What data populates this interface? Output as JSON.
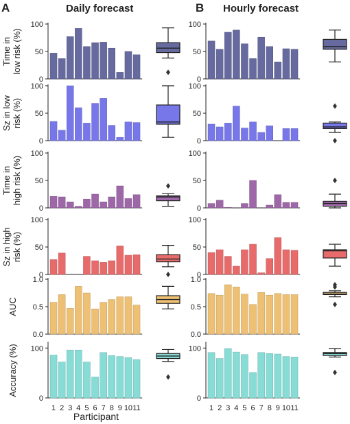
{
  "panel_labels": [
    "A",
    "B"
  ],
  "column_titles": [
    "Daily forecast",
    "Hourly forecast"
  ],
  "xlabel": "Participant",
  "categories": [
    "1",
    "2",
    "3",
    "4",
    "5",
    "6",
    "7",
    "8",
    "9",
    "10",
    "11"
  ],
  "row_ylabels": [
    [
      "Time in",
      "low risk (%)"
    ],
    [
      "Sz in low",
      "risk (%)"
    ],
    [
      "Time in",
      "high risk (%)"
    ],
    [
      "Sz in high",
      "risk (%)"
    ],
    [
      "AUC"
    ],
    [
      "Accuracy (%)"
    ]
  ],
  "chart_data": [
    {
      "type": "bar",
      "panel": "A",
      "metric": "Time in low risk (%)",
      "ylim": [
        0,
        100
      ],
      "yticks": [
        "0",
        "50",
        "100"
      ],
      "color": "#666a9e",
      "categories": [
        "1",
        "2",
        "3",
        "4",
        "5",
        "6",
        "7",
        "8",
        "9",
        "10",
        "11"
      ],
      "values": [
        47,
        37,
        77,
        92,
        59,
        66,
        67,
        56,
        12,
        50,
        44
      ],
      "box": {
        "whisker_low": 38,
        "q1": 48,
        "median": 56,
        "q3": 66,
        "whisker_high": 93,
        "outliers": [
          12
        ]
      }
    },
    {
      "type": "bar",
      "panel": "B",
      "metric": "Time in low risk (%)",
      "ylim": [
        0,
        100
      ],
      "yticks": [
        "0",
        "50",
        "100"
      ],
      "color": "#666a9e",
      "categories": [
        "1",
        "2",
        "3",
        "4",
        "5",
        "6",
        "7",
        "8",
        "9",
        "10",
        "11"
      ],
      "values": [
        69,
        54,
        85,
        89,
        64,
        37,
        76,
        59,
        31,
        55,
        54
      ],
      "box": {
        "whisker_low": 31,
        "q1": 54,
        "median": 59,
        "q3": 72,
        "whisker_high": 89,
        "outliers": []
      }
    },
    {
      "type": "bar",
      "panel": "A",
      "metric": "Sz in low risk (%)",
      "ylim": [
        0,
        100
      ],
      "yticks": [
        "0",
        "50",
        "100"
      ],
      "color": "#7777e9",
      "categories": [
        "1",
        "2",
        "3",
        "4",
        "5",
        "6",
        "7",
        "8",
        "9",
        "10",
        "11"
      ],
      "values": [
        35,
        19,
        100,
        60,
        32,
        68,
        77,
        28,
        6,
        34,
        33
      ],
      "box": {
        "whisker_low": 6,
        "q1": 30,
        "median": 34,
        "q3": 65,
        "whisker_high": 100,
        "outliers": []
      }
    },
    {
      "type": "bar",
      "panel": "B",
      "metric": "Sz in low risk (%)",
      "ylim": [
        0,
        100
      ],
      "yticks": [
        "0",
        "50",
        "100"
      ],
      "color": "#7777e9",
      "categories": [
        "1",
        "2",
        "3",
        "4",
        "5",
        "6",
        "7",
        "8",
        "9",
        "10",
        "11"
      ],
      "values": [
        30,
        25,
        32,
        63,
        23,
        34,
        15,
        27,
        0,
        22,
        22
      ],
      "box": {
        "whisker_low": 15,
        "q1": 22,
        "median": 25,
        "q3": 32,
        "whisker_high": 34,
        "outliers": [
          63,
          0
        ]
      }
    },
    {
      "type": "bar",
      "panel": "A",
      "metric": "Time in high risk (%)",
      "ylim": [
        0,
        100
      ],
      "yticks": [
        "0",
        "50",
        "100"
      ],
      "color": "#9e68a8",
      "categories": [
        "1",
        "2",
        "3",
        "4",
        "5",
        "6",
        "7",
        "8",
        "9",
        "10",
        "11"
      ],
      "values": [
        21,
        20,
        11,
        3,
        16,
        25,
        11,
        20,
        40,
        17,
        24
      ],
      "box": {
        "whisker_low": 3,
        "q1": 13,
        "median": 20,
        "q3": 22,
        "whisker_high": 26,
        "outliers": [
          40
        ]
      }
    },
    {
      "type": "bar",
      "panel": "B",
      "metric": "Time in high risk (%)",
      "ylim": [
        0,
        100
      ],
      "yticks": [
        "0",
        "50",
        "100"
      ],
      "color": "#9e68a8",
      "categories": [
        "1",
        "2",
        "3",
        "4",
        "5",
        "6",
        "7",
        "8",
        "9",
        "10",
        "11"
      ],
      "values": [
        8,
        14,
        1,
        -3,
        8,
        50,
        -1,
        5,
        24,
        10,
        10
      ],
      "box": {
        "whisker_low": 0,
        "q1": 3,
        "median": 8,
        "q3": 12,
        "whisker_high": 25,
        "outliers": [
          50
        ]
      }
    },
    {
      "type": "bar",
      "panel": "A",
      "metric": "Sz in high risk (%)",
      "ylim": [
        0,
        100
      ],
      "yticks": [
        "0",
        "50",
        "100"
      ],
      "color": "#e86b6b",
      "categories": [
        "1",
        "2",
        "3",
        "4",
        "5",
        "6",
        "7",
        "8",
        "9",
        "10",
        "11"
      ],
      "values": [
        27,
        39,
        0,
        0,
        33,
        25,
        22,
        25,
        52,
        35,
        36
      ],
      "box": {
        "whisker_low": 14,
        "q1": 23,
        "median": 28,
        "q3": 36,
        "whisker_high": 53,
        "outliers": [
          0
        ]
      }
    },
    {
      "type": "bar",
      "panel": "B",
      "metric": "Sz in high risk (%)",
      "ylim": [
        0,
        100
      ],
      "yticks": [
        "0",
        "50",
        "100"
      ],
      "color": "#e86b6b",
      "categories": [
        "1",
        "2",
        "3",
        "4",
        "5",
        "6",
        "7",
        "8",
        "9",
        "10",
        "11"
      ],
      "values": [
        40,
        45,
        33,
        15,
        45,
        55,
        3,
        29,
        67,
        45,
        44
      ],
      "box": {
        "whisker_low": 15,
        "q1": 30,
        "median": 43,
        "q3": 45,
        "whisker_high": 55,
        "outliers": []
      }
    },
    {
      "type": "bar",
      "panel": "A",
      "metric": "AUC",
      "ylim": [
        0,
        1
      ],
      "yticks": [
        "0.0",
        "0.5",
        "1.0"
      ],
      "color": "#eec074",
      "categories": [
        "1",
        "2",
        "3",
        "4",
        "5",
        "6",
        "7",
        "8",
        "9",
        "10",
        "11"
      ],
      "values": [
        0.58,
        0.72,
        0.47,
        0.87,
        0.75,
        0.46,
        0.58,
        0.63,
        0.68,
        0.68,
        0.53
      ],
      "box": {
        "whisker_low": 0.46,
        "q1": 0.56,
        "median": 0.63,
        "q3": 0.7,
        "whisker_high": 0.87,
        "outliers": []
      }
    },
    {
      "type": "bar",
      "panel": "B",
      "metric": "AUC",
      "ylim": [
        0,
        1
      ],
      "yticks": [
        "0.0",
        "0.5",
        "1.0"
      ],
      "color": "#eec074",
      "categories": [
        "1",
        "2",
        "3",
        "4",
        "5",
        "6",
        "7",
        "8",
        "9",
        "10",
        "11"
      ],
      "values": [
        0.74,
        0.71,
        0.9,
        0.86,
        0.73,
        0.54,
        0.76,
        0.71,
        0.74,
        0.72,
        0.72
      ],
      "box": {
        "whisker_low": 0.68,
        "q1": 0.72,
        "median": 0.73,
        "q3": 0.76,
        "whisker_high": 0.79,
        "outliers": [
          0.9,
          0.86,
          0.54
        ]
      }
    },
    {
      "type": "bar",
      "panel": "A",
      "metric": "Accuracy (%)",
      "ylim": [
        0,
        110
      ],
      "yticks": [
        "0",
        "100"
      ],
      "color": "#88dcd6",
      "categories": [
        "1",
        "2",
        "3",
        "4",
        "5",
        "6",
        "7",
        "8",
        "9",
        "10",
        "11"
      ],
      "values": [
        86,
        72,
        96,
        96,
        72,
        42,
        91,
        85,
        83,
        81,
        77
      ],
      "box": {
        "whisker_low": 73,
        "q1": 79,
        "median": 84,
        "q3": 89,
        "whisker_high": 97,
        "outliers": [
          42
        ]
      }
    },
    {
      "type": "bar",
      "panel": "B",
      "metric": "Accuracy (%)",
      "ylim": [
        0,
        110
      ],
      "yticks": [
        "0",
        "100"
      ],
      "color": "#88dcd6",
      "categories": [
        "1",
        "2",
        "3",
        "4",
        "5",
        "6",
        "7",
        "8",
        "9",
        "10",
        "11"
      ],
      "values": [
        91,
        79,
        99,
        92,
        87,
        51,
        91,
        89,
        88,
        83,
        82
      ],
      "box": {
        "whisker_low": 82,
        "q1": 85,
        "median": 89,
        "q3": 91,
        "whisker_high": 99,
        "outliers": [
          51
        ]
      }
    }
  ]
}
